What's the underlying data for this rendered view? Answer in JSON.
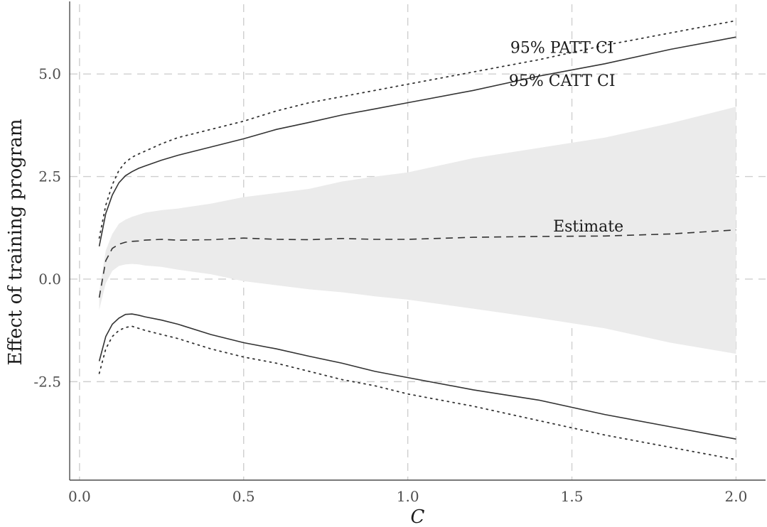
{
  "chart_data": {
    "type": "line",
    "title": "",
    "xlabel": "C",
    "ylabel": "Effect of training program",
    "xlim": [
      -0.03,
      2.09
    ],
    "ylim": [
      -4.9,
      6.7
    ],
    "grid": true,
    "x_ticks": [
      0.0,
      0.5,
      1.0,
      1.5,
      2.0
    ],
    "x_tick_labels": [
      "0.0",
      "0.5",
      "1.0",
      "1.5",
      "2.0"
    ],
    "y_ticks": [
      -2.5,
      0.0,
      2.5,
      5.0
    ],
    "y_tick_labels": [
      "-2.5",
      "0.0",
      "2.5",
      "5.0"
    ],
    "x": [
      0.06,
      0.08,
      0.1,
      0.12,
      0.14,
      0.16,
      0.18,
      0.2,
      0.25,
      0.3,
      0.4,
      0.5,
      0.6,
      0.7,
      0.8,
      0.9,
      1.0,
      1.2,
      1.4,
      1.6,
      1.8,
      2.0
    ],
    "series": [
      {
        "name": "95% PATT CI",
        "style": "dotted",
        "color": "#333333",
        "upper": [
          1.0,
          1.8,
          2.3,
          2.65,
          2.85,
          2.97,
          3.05,
          3.12,
          3.3,
          3.45,
          3.65,
          3.85,
          4.1,
          4.3,
          4.45,
          4.6,
          4.75,
          5.05,
          5.35,
          5.7,
          6.0,
          6.3
        ],
        "lower": [
          -2.3,
          -1.7,
          -1.4,
          -1.25,
          -1.18,
          -1.15,
          -1.2,
          -1.25,
          -1.35,
          -1.45,
          -1.7,
          -1.9,
          -2.05,
          -2.25,
          -2.45,
          -2.6,
          -2.8,
          -3.1,
          -3.45,
          -3.8,
          -4.1,
          -4.4
        ]
      },
      {
        "name": "95% CATT CI",
        "style": "solid",
        "color": "#333333",
        "upper": [
          0.8,
          1.6,
          2.05,
          2.35,
          2.52,
          2.62,
          2.7,
          2.76,
          2.9,
          3.02,
          3.22,
          3.42,
          3.65,
          3.82,
          4.0,
          4.15,
          4.3,
          4.6,
          4.95,
          5.25,
          5.6,
          5.9
        ],
        "lower": [
          -2.0,
          -1.4,
          -1.1,
          -0.95,
          -0.86,
          -0.85,
          -0.88,
          -0.92,
          -1.0,
          -1.1,
          -1.35,
          -1.55,
          -1.7,
          -1.88,
          -2.05,
          -2.25,
          -2.4,
          -2.7,
          -2.95,
          -3.3,
          -3.6,
          -3.9
        ]
      },
      {
        "name": "Estimate",
        "style": "dashed",
        "color": "#333333",
        "values": [
          -0.45,
          0.45,
          0.75,
          0.85,
          0.9,
          0.92,
          0.93,
          0.95,
          0.97,
          0.95,
          0.96,
          1.0,
          0.97,
          0.96,
          0.99,
          0.97,
          0.97,
          1.02,
          1.04,
          1.05,
          1.1,
          1.2
        ]
      },
      {
        "name": "band",
        "style": "ribbon",
        "color": "#ebebeb",
        "upper": [
          -0.3,
          0.7,
          1.1,
          1.35,
          1.45,
          1.52,
          1.57,
          1.62,
          1.68,
          1.72,
          1.84,
          2.0,
          2.1,
          2.2,
          2.38,
          2.5,
          2.6,
          2.95,
          3.2,
          3.45,
          3.8,
          4.2
        ],
        "lower": [
          -0.75,
          -0.1,
          0.2,
          0.32,
          0.36,
          0.37,
          0.36,
          0.33,
          0.3,
          0.23,
          0.12,
          -0.05,
          -0.15,
          -0.25,
          -0.32,
          -0.42,
          -0.5,
          -0.72,
          -0.95,
          -1.2,
          -1.55,
          -1.82
        ]
      }
    ],
    "annotations": [
      {
        "text": "95% PATT CI",
        "x": 1.47,
        "y": 5.65
      },
      {
        "text": "95% CATT CI",
        "x": 1.47,
        "y": 4.85
      },
      {
        "text": "Estimate",
        "x": 1.55,
        "y": 1.3
      }
    ]
  }
}
